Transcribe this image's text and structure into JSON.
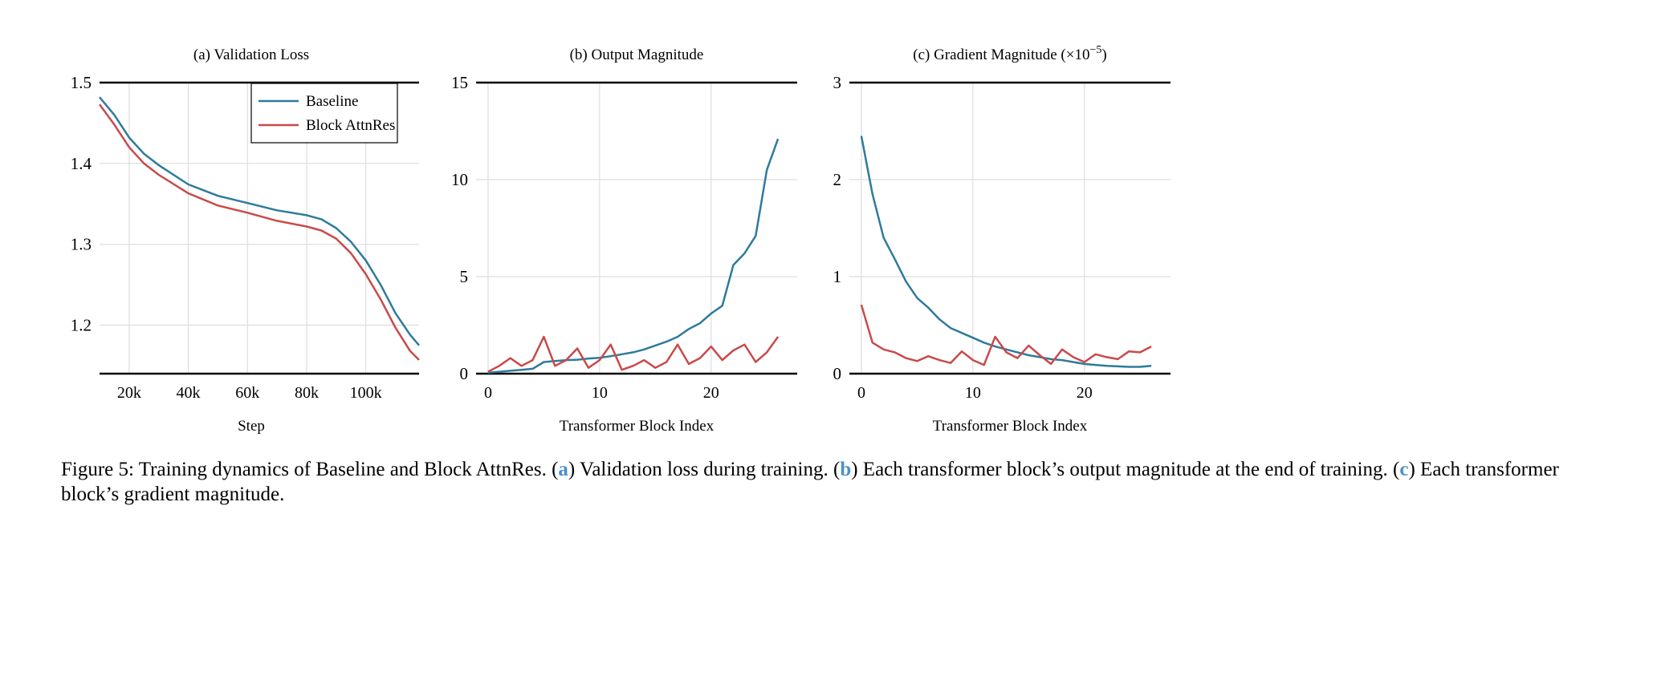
{
  "colors": {
    "baseline": "#2e7b9b",
    "attnres": "#c94a4a",
    "grid": "#dddddd",
    "axis": "#000000",
    "caption_highlight": "#4a90c9"
  },
  "chart_data": [
    {
      "type": "line",
      "title": "(a) Validation Loss",
      "xlabel": "Step",
      "ylabel": "",
      "xlim": [
        10000,
        118000
      ],
      "ylim": [
        1.14,
        1.5
      ],
      "xticks": [
        20000,
        40000,
        60000,
        80000,
        100000
      ],
      "xtick_labels": [
        "20k",
        "40k",
        "60k",
        "80k",
        "100k"
      ],
      "yticks": [
        1.2,
        1.3,
        1.4,
        1.5
      ],
      "ytick_labels": [
        "1.2",
        "1.3",
        "1.4",
        "1.5"
      ],
      "grid": true,
      "legend": "top-right",
      "x": [
        10000,
        15000,
        20000,
        25000,
        30000,
        40000,
        50000,
        60000,
        70000,
        80000,
        85000,
        90000,
        95000,
        100000,
        105000,
        110000,
        115000,
        118000
      ],
      "series": [
        {
          "name": "Baseline",
          "values": [
            1.482,
            1.46,
            1.432,
            1.412,
            1.398,
            1.374,
            1.36,
            1.351,
            1.342,
            1.336,
            1.331,
            1.32,
            1.303,
            1.28,
            1.25,
            1.215,
            1.188,
            1.175
          ]
        },
        {
          "name": "Block AttnRes",
          "values": [
            1.473,
            1.448,
            1.42,
            1.4,
            1.386,
            1.363,
            1.348,
            1.339,
            1.329,
            1.322,
            1.317,
            1.307,
            1.289,
            1.263,
            1.232,
            1.197,
            1.168,
            1.157
          ]
        }
      ]
    },
    {
      "type": "line",
      "title": "(b) Output Magnitude",
      "xlabel": "Transformer Block Index",
      "ylabel": "",
      "xlim": [
        -0.5,
        27
      ],
      "ylim": [
        0,
        15
      ],
      "xticks": [
        0,
        10,
        20
      ],
      "xtick_labels": [
        "0",
        "10",
        "20"
      ],
      "yticks": [
        0,
        5,
        10,
        15
      ],
      "ytick_labels": [
        "0",
        "5",
        "10",
        "15"
      ],
      "grid": true,
      "x": [
        0,
        1,
        2,
        3,
        4,
        5,
        6,
        7,
        8,
        9,
        10,
        11,
        12,
        13,
        14,
        15,
        16,
        17,
        18,
        19,
        20,
        21,
        22,
        23,
        24,
        25,
        26
      ],
      "series": [
        {
          "name": "Baseline",
          "values": [
            0.05,
            0.1,
            0.15,
            0.2,
            0.25,
            0.6,
            0.65,
            0.7,
            0.72,
            0.78,
            0.82,
            0.9,
            1.0,
            1.1,
            1.25,
            1.45,
            1.65,
            1.9,
            2.3,
            2.6,
            3.1,
            3.5,
            5.6,
            6.2,
            7.1,
            10.5,
            12.1
          ]
        },
        {
          "name": "Block AttnRes",
          "values": [
            0.1,
            0.4,
            0.8,
            0.4,
            0.7,
            1.9,
            0.4,
            0.7,
            1.3,
            0.3,
            0.7,
            1.5,
            0.2,
            0.4,
            0.7,
            0.3,
            0.6,
            1.5,
            0.5,
            0.8,
            1.4,
            0.7,
            1.2,
            1.5,
            0.6,
            1.1,
            1.9
          ]
        }
      ]
    },
    {
      "type": "line",
      "title": "(c) Gradient Magnitude (×10",
      "title_sup": "−5",
      "title_end": ")",
      "xlabel": "Transformer Block Index",
      "ylabel": "",
      "xlim": [
        -0.5,
        27
      ],
      "ylim": [
        0,
        3
      ],
      "xticks": [
        0,
        10,
        20
      ],
      "xtick_labels": [
        "0",
        "10",
        "20"
      ],
      "yticks": [
        0,
        1,
        2,
        3
      ],
      "ytick_labels": [
        "0",
        "1",
        "2",
        "3"
      ],
      "grid": true,
      "x": [
        0,
        1,
        2,
        3,
        4,
        5,
        6,
        7,
        8,
        9,
        10,
        11,
        12,
        13,
        14,
        15,
        16,
        17,
        18,
        19,
        20,
        21,
        22,
        23,
        24,
        25,
        26
      ],
      "series": [
        {
          "name": "Baseline",
          "values": [
            2.45,
            1.85,
            1.4,
            1.18,
            0.95,
            0.78,
            0.68,
            0.56,
            0.47,
            0.42,
            0.37,
            0.32,
            0.28,
            0.25,
            0.22,
            0.19,
            0.17,
            0.15,
            0.14,
            0.12,
            0.1,
            0.09,
            0.08,
            0.075,
            0.07,
            0.07,
            0.08
          ]
        },
        {
          "name": "Block AttnRes",
          "values": [
            0.71,
            0.32,
            0.25,
            0.22,
            0.16,
            0.13,
            0.18,
            0.14,
            0.11,
            0.23,
            0.14,
            0.09,
            0.38,
            0.22,
            0.16,
            0.29,
            0.19,
            0.1,
            0.25,
            0.17,
            0.12,
            0.2,
            0.17,
            0.15,
            0.23,
            0.22,
            0.28
          ]
        }
      ]
    }
  ],
  "caption": {
    "prefix": "Figure 5: Training dynamics of Baseline and Block AttnRes. (",
    "a": "a",
    "a_text": ") Validation loss during training. (",
    "b": "b",
    "b_text": ") Each transformer block’s output magnitude at the end of training. (",
    "c": "c",
    "c_text": ") Each transformer block’s gradient magnitude."
  }
}
